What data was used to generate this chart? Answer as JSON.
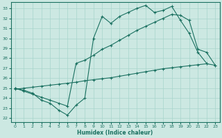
{
  "xlabel": "Humidex (Indice chaleur)",
  "xlim": [
    -0.5,
    23.5
  ],
  "ylim": [
    21.6,
    33.6
  ],
  "xticks": [
    0,
    1,
    2,
    3,
    4,
    5,
    6,
    7,
    8,
    9,
    10,
    11,
    12,
    13,
    14,
    15,
    16,
    17,
    18,
    19,
    20,
    21,
    22,
    23
  ],
  "yticks": [
    22,
    23,
    24,
    25,
    26,
    27,
    28,
    29,
    30,
    31,
    32,
    33
  ],
  "bg_color": "#cce8e2",
  "grid_color": "#a8d4cc",
  "line_color": "#1a7060",
  "line1_x": [
    0,
    1,
    2,
    3,
    4,
    5,
    6,
    7,
    8,
    9,
    10,
    11,
    12,
    13,
    14,
    15,
    16,
    17,
    18,
    19,
    20,
    21,
    22
  ],
  "line1_y": [
    25.0,
    24.8,
    24.5,
    23.8,
    23.5,
    22.8,
    22.3,
    23.3,
    24.0,
    30.0,
    32.2,
    31.5,
    32.2,
    32.6,
    33.0,
    33.3,
    32.6,
    32.8,
    33.2,
    31.8,
    30.5,
    28.6,
    27.5
  ],
  "line2_x": [
    0,
    1,
    2,
    3,
    4,
    5,
    6,
    7,
    8,
    9,
    10,
    11,
    12,
    13,
    14,
    15,
    16,
    17,
    18,
    19,
    20,
    21,
    22,
    23
  ],
  "line2_y": [
    25.0,
    24.7,
    24.4,
    24.1,
    23.8,
    23.5,
    23.2,
    27.5,
    27.8,
    28.3,
    28.9,
    29.3,
    29.8,
    30.3,
    30.8,
    31.2,
    31.6,
    32.0,
    32.4,
    32.3,
    31.8,
    28.9,
    28.6,
    27.3
  ],
  "line3_x": [
    0,
    1,
    2,
    3,
    4,
    5,
    6,
    7,
    8,
    9,
    10,
    11,
    12,
    13,
    14,
    15,
    16,
    17,
    18,
    19,
    20,
    21,
    22,
    23
  ],
  "line3_y": [
    24.9,
    25.0,
    25.1,
    25.2,
    25.3,
    25.4,
    25.5,
    25.6,
    25.75,
    25.85,
    25.95,
    26.05,
    26.2,
    26.35,
    26.5,
    26.65,
    26.8,
    26.95,
    27.05,
    27.15,
    27.25,
    27.35,
    27.45,
    27.3
  ]
}
